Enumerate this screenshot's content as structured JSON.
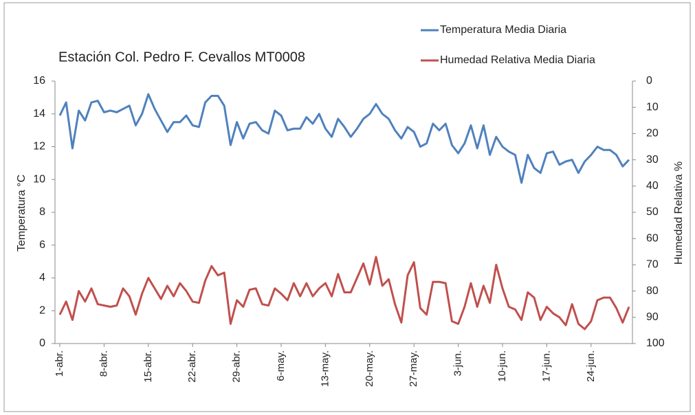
{
  "chart_data": {
    "type": "line",
    "title": "Estación Col. Pedro F. Cevallos  MT0008",
    "ylabel": "Temperatura °C",
    "y2label": "Humedad Relativa %",
    "categories": [
      "1-abr.",
      null,
      null,
      null,
      null,
      null,
      null,
      "8-abr.",
      null,
      null,
      null,
      null,
      null,
      null,
      "15-abr.",
      null,
      null,
      null,
      null,
      null,
      null,
      "22-abr.",
      null,
      null,
      null,
      null,
      null,
      null,
      "29-abr.",
      null,
      null,
      null,
      null,
      null,
      null,
      "6-may.",
      null,
      null,
      null,
      null,
      null,
      null,
      "13-may.",
      null,
      null,
      null,
      null,
      null,
      null,
      "20-may.",
      null,
      null,
      null,
      null,
      null,
      null,
      "27-may.",
      null,
      null,
      null,
      null,
      null,
      null,
      "3-jun.",
      null,
      null,
      null,
      null,
      null,
      null,
      "10-jun.",
      null,
      null,
      null,
      null,
      null,
      null,
      "17-jun.",
      null,
      null,
      null,
      null,
      null,
      null,
      "24-jun.",
      null,
      null,
      null,
      null,
      null,
      null
    ],
    "series": [
      {
        "name": "Temperatura Media Diaria",
        "color": "#4f81bd",
        "axis": "y",
        "values": [
          13.9,
          14.7,
          11.9,
          14.2,
          13.6,
          14.7,
          14.8,
          14.1,
          14.2,
          14.1,
          14.3,
          14.5,
          13.3,
          14.0,
          15.2,
          14.3,
          13.6,
          12.9,
          13.5,
          13.5,
          13.9,
          13.3,
          13.2,
          14.7,
          15.1,
          15.1,
          14.5,
          12.1,
          13.5,
          12.5,
          13.4,
          13.5,
          13.0,
          12.8,
          14.2,
          13.9,
          13.0,
          13.1,
          13.1,
          13.8,
          13.4,
          14.0,
          13.1,
          12.6,
          13.7,
          13.2,
          12.6,
          13.1,
          13.7,
          14.0,
          14.6,
          14.0,
          13.7,
          13.0,
          12.5,
          13.2,
          12.9,
          12.0,
          12.2,
          13.4,
          13.0,
          13.4,
          12.1,
          11.6,
          12.2,
          13.3,
          11.9,
          13.3,
          11.5,
          12.6,
          12.0,
          11.7,
          11.5,
          9.8,
          11.5,
          10.7,
          10.4,
          11.6,
          11.7,
          10.9,
          11.1,
          11.2,
          10.4,
          11.1,
          11.5,
          12.0,
          11.8,
          11.8,
          11.5,
          10.8,
          11.2
        ]
      },
      {
        "name": "Humedad Relativa Media Diaria",
        "color": "#c0504d",
        "axis": "y2",
        "values": [
          89,
          84,
          91,
          80,
          84,
          79,
          85,
          85.5,
          86,
          85.5,
          79,
          82,
          89,
          81,
          75,
          79,
          83,
          78,
          82,
          77,
          80,
          84,
          84.5,
          76,
          70.5,
          74,
          73,
          92.5,
          83.5,
          86,
          79.5,
          79,
          85,
          85.5,
          79,
          81,
          83.5,
          77,
          82,
          77,
          82,
          79,
          77,
          82,
          73.5,
          80.5,
          80.5,
          75,
          69.5,
          77.5,
          67,
          78,
          75.5,
          85,
          92,
          74,
          69,
          86.5,
          89,
          76.5,
          76.5,
          77,
          91.5,
          92.5,
          86,
          77,
          86,
          78,
          84.5,
          70,
          79,
          86,
          87,
          91,
          80.5,
          82.5,
          91,
          86,
          88.5,
          90,
          93,
          85,
          92.5,
          94.5,
          91.5,
          83.5,
          82.5,
          82.5,
          86.5,
          92,
          86
        ]
      }
    ],
    "ylim": [
      0,
      16
    ],
    "yticks": [
      0,
      2,
      4,
      6,
      8,
      10,
      12,
      14,
      16
    ],
    "y2lim": [
      100,
      0
    ],
    "y2ticks": [
      0,
      10,
      20,
      30,
      40,
      50,
      60,
      70,
      80,
      90,
      100
    ]
  }
}
